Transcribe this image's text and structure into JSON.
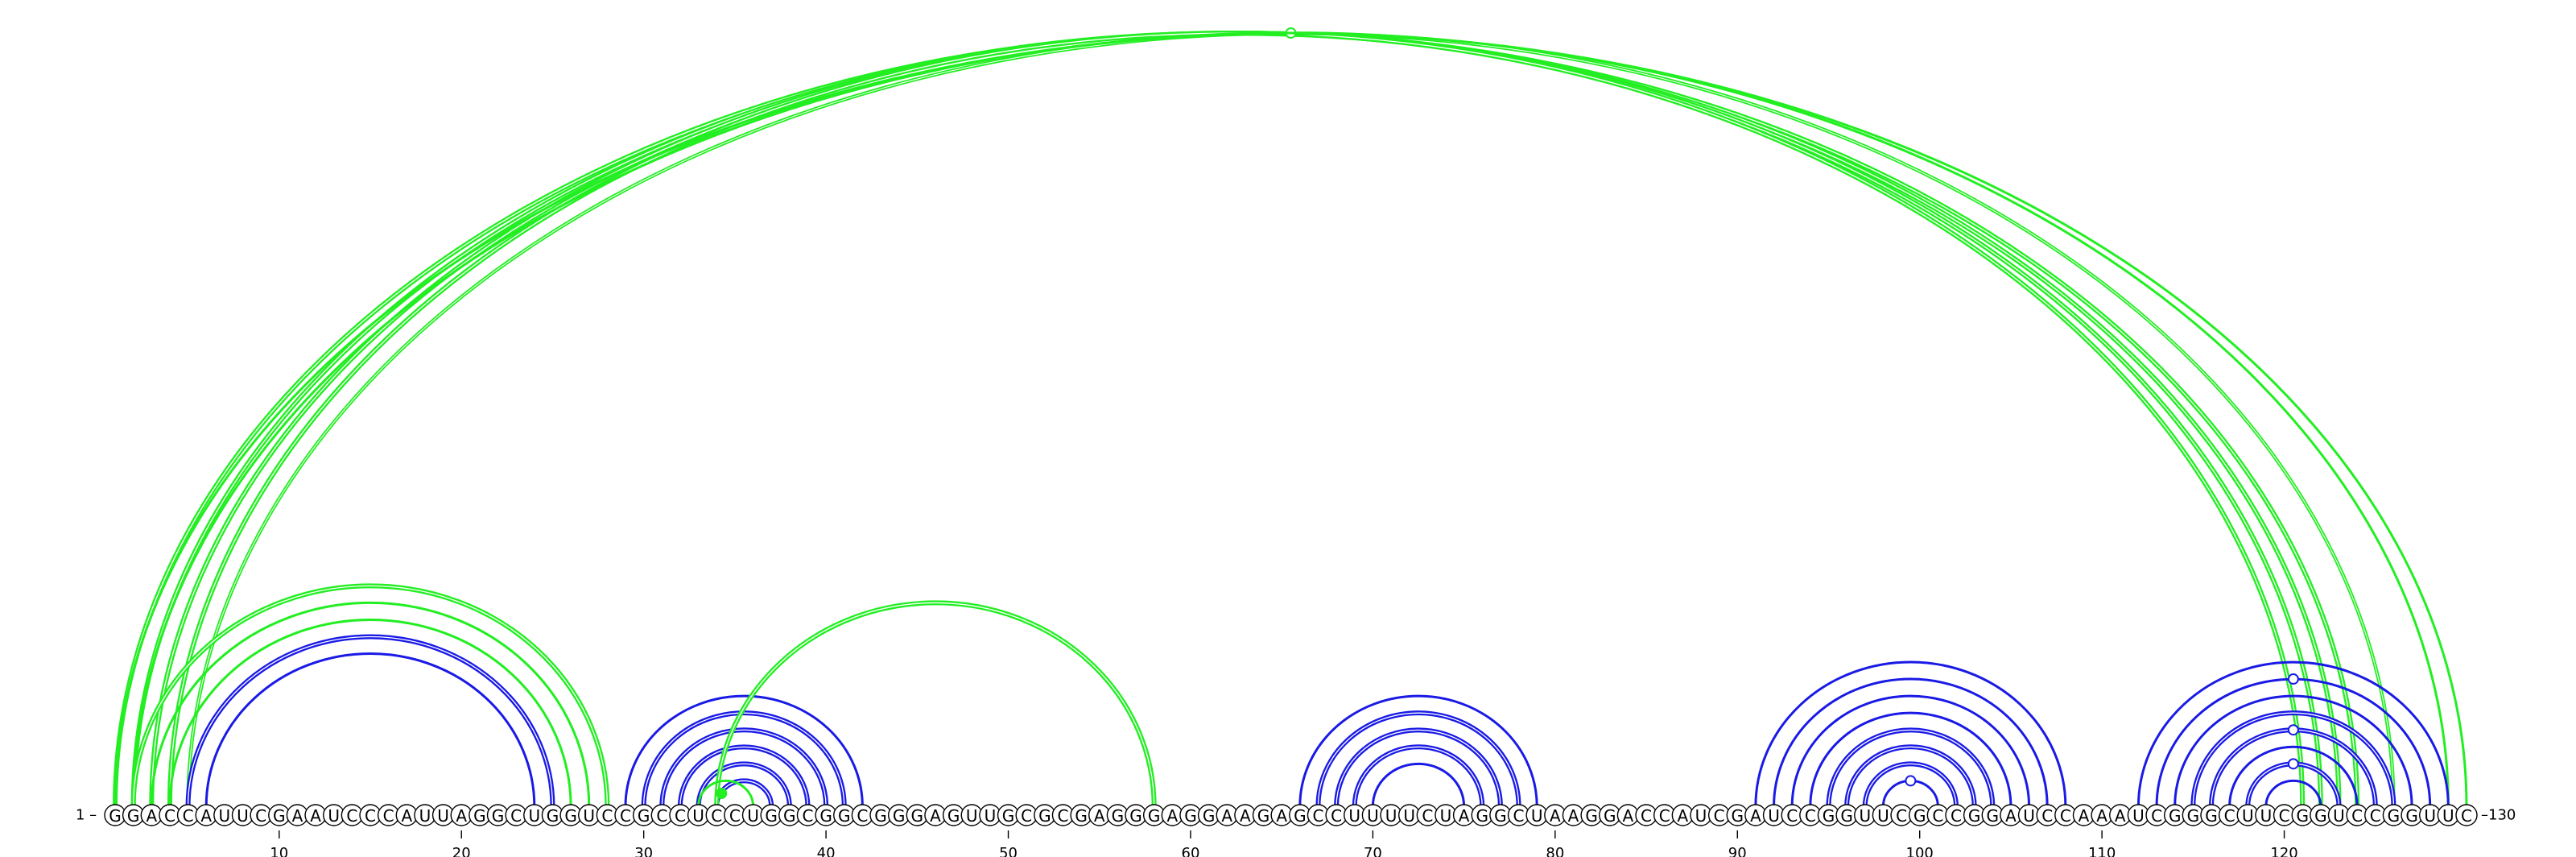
{
  "sequence": "GGACCAUUCGAAUCCCAUUAGGCUGGUCCGCCUCCUGGCGGCGGGAGUUGCGCGAGGGAGGAAGAGCCUUUUCUAGGCUAAGGACCAUCGAUCCGGUUCGCCGGAUCCAAAUCGGGCUUCGGUCCGGUUC",
  "start_label": "1 –",
  "end_label": "–130",
  "tick_values": [
    10,
    20,
    30,
    40,
    50,
    60,
    70,
    80,
    90,
    100,
    110,
    120
  ],
  "colors": {
    "local_pair": "#1a1ae6",
    "long_range_pair": "#22ee22",
    "backbone": "#000000"
  },
  "pairs": [
    {
      "i": 1,
      "j": 124,
      "type": "long_range",
      "weight": "heavy"
    },
    {
      "i": 2,
      "j": 123,
      "type": "long_range",
      "weight": "heavy"
    },
    {
      "i": 3,
      "j": 122,
      "type": "long_range",
      "weight": "heavy"
    },
    {
      "i": 4,
      "j": 121,
      "type": "long_range",
      "weight": "heavy"
    },
    {
      "i": 5,
      "j": 126,
      "type": "long_range",
      "weight": "medium"
    },
    {
      "i": 1,
      "j": 130,
      "type": "long_range",
      "weight": "light",
      "marker": true
    },
    {
      "i": 2,
      "j": 129,
      "type": "long_range",
      "weight": "light"
    },
    {
      "i": 2,
      "j": 28,
      "type": "long_range",
      "weight": "heavy"
    },
    {
      "i": 3,
      "j": 27,
      "type": "long_range",
      "weight": "light"
    },
    {
      "i": 4,
      "j": 26,
      "type": "long_range",
      "weight": "light"
    },
    {
      "i": 5,
      "j": 25,
      "type": "local",
      "weight": "heavy"
    },
    {
      "i": 6,
      "j": 24,
      "type": "local",
      "weight": "light"
    },
    {
      "i": 30,
      "j": 41,
      "type": "local",
      "weight": "heavy"
    },
    {
      "i": 31,
      "j": 40,
      "type": "local",
      "weight": "heavy"
    },
    {
      "i": 32,
      "j": 39,
      "type": "local",
      "weight": "heavy"
    },
    {
      "i": 33,
      "j": 38,
      "type": "local",
      "weight": "heavy"
    },
    {
      "i": 34,
      "j": 37,
      "type": "local",
      "weight": "heavy"
    },
    {
      "i": 29,
      "j": 42,
      "type": "local",
      "weight": "light"
    },
    {
      "i": 34,
      "j": 58,
      "type": "long_range",
      "weight": "heavy",
      "marker_start": true
    },
    {
      "i": 33,
      "j": 36,
      "type": "long_range",
      "weight": "light"
    },
    {
      "i": 66,
      "j": 79,
      "type": "local",
      "weight": "light"
    },
    {
      "i": 67,
      "j": 78,
      "type": "local",
      "weight": "heavy"
    },
    {
      "i": 68,
      "j": 77,
      "type": "local",
      "weight": "heavy"
    },
    {
      "i": 69,
      "j": 76,
      "type": "local",
      "weight": "heavy"
    },
    {
      "i": 70,
      "j": 75,
      "type": "local",
      "weight": "light"
    },
    {
      "i": 91,
      "j": 108,
      "type": "local",
      "weight": "light"
    },
    {
      "i": 92,
      "j": 107,
      "type": "local",
      "weight": "light"
    },
    {
      "i": 93,
      "j": 106,
      "type": "local",
      "weight": "light"
    },
    {
      "i": 94,
      "j": 105,
      "type": "local",
      "weight": "light"
    },
    {
      "i": 95,
      "j": 104,
      "type": "local",
      "weight": "heavy"
    },
    {
      "i": 96,
      "j": 103,
      "type": "local",
      "weight": "heavy"
    },
    {
      "i": 97,
      "j": 102,
      "type": "local",
      "weight": "heavy"
    },
    {
      "i": 98,
      "j": 101,
      "type": "local",
      "weight": "light",
      "marker": true
    },
    {
      "i": 112,
      "j": 129,
      "type": "local",
      "weight": "light"
    },
    {
      "i": 113,
      "j": 128,
      "type": "local",
      "weight": "light",
      "marker": true
    },
    {
      "i": 114,
      "j": 127,
      "type": "local",
      "weight": "light"
    },
    {
      "i": 115,
      "j": 126,
      "type": "local",
      "weight": "heavy"
    },
    {
      "i": 116,
      "j": 125,
      "type": "local",
      "weight": "heavy",
      "marker": true
    },
    {
      "i": 117,
      "j": 124,
      "type": "local",
      "weight": "light"
    },
    {
      "i": 118,
      "j": 123,
      "type": "local",
      "weight": "heavy",
      "marker": true
    },
    {
      "i": 119,
      "j": 122,
      "type": "local",
      "weight": "light"
    }
  ]
}
